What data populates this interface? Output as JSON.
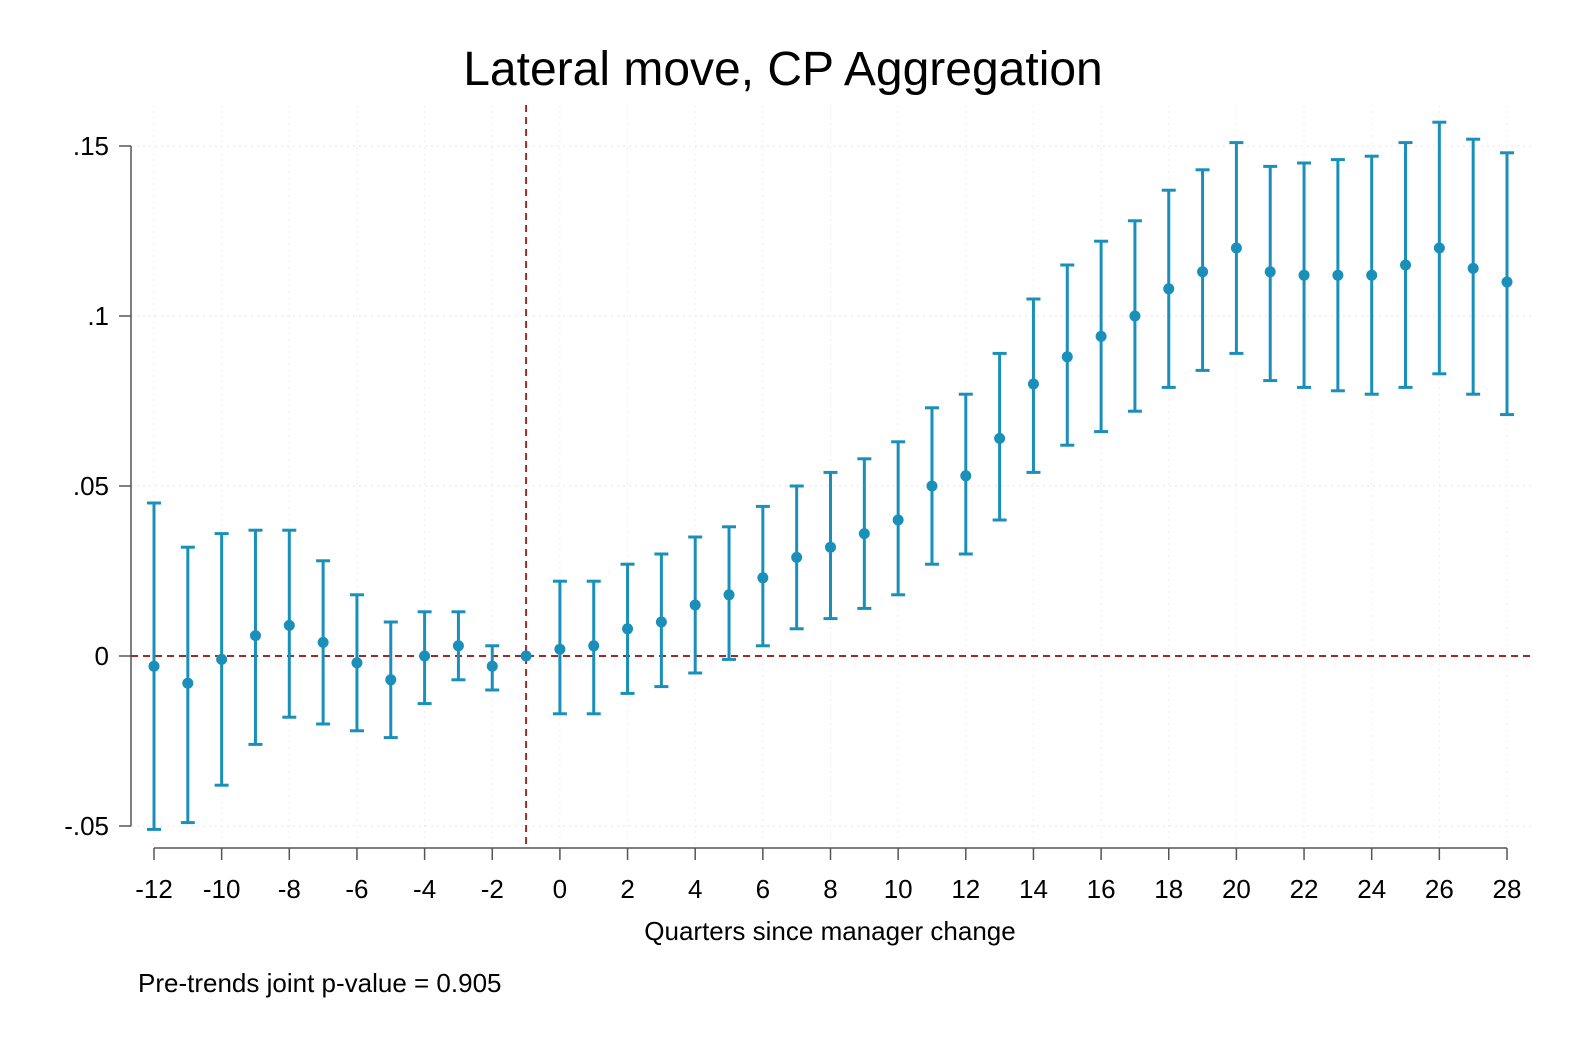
{
  "chart_data": {
    "type": "scatter",
    "title": "Lateral move, CP Aggregation",
    "xlabel": "Quarters since manager change",
    "ylabel": "",
    "note": "Pre-trends joint p-value = 0.905",
    "xlim": [
      -12,
      28
    ],
    "ylim": [
      -0.05,
      0.15
    ],
    "x_ticks": [
      -12,
      -10,
      -8,
      -6,
      -4,
      -2,
      0,
      2,
      4,
      6,
      8,
      10,
      12,
      14,
      16,
      18,
      20,
      22,
      24,
      26,
      28
    ],
    "x_tick_labels": [
      "-12",
      "-10",
      "-8",
      "-6",
      "-4",
      "-2",
      "0",
      "2",
      "4",
      "6",
      "8",
      "10",
      "12",
      "14",
      "16",
      "18",
      "20",
      "22",
      "24",
      "26",
      "28"
    ],
    "y_ticks": [
      -0.05,
      0,
      0.05,
      0.1,
      0.15
    ],
    "y_tick_labels": [
      "-.05",
      "0",
      ".05",
      ".1",
      ".15"
    ],
    "reference_lines": {
      "vertical_x": -1,
      "horizontal_y": 0
    },
    "grid": true,
    "colors": {
      "series": "#1a8fba",
      "reference": "#9b2c2c"
    },
    "points": [
      {
        "x": -12,
        "y": -0.003,
        "lo": -0.051,
        "hi": 0.045
      },
      {
        "x": -11,
        "y": -0.008,
        "lo": -0.049,
        "hi": 0.032
      },
      {
        "x": -10,
        "y": -0.001,
        "lo": -0.038,
        "hi": 0.036
      },
      {
        "x": -9,
        "y": 0.006,
        "lo": -0.026,
        "hi": 0.037
      },
      {
        "x": -8,
        "y": 0.009,
        "lo": -0.018,
        "hi": 0.037
      },
      {
        "x": -7,
        "y": 0.004,
        "lo": -0.02,
        "hi": 0.028
      },
      {
        "x": -6,
        "y": -0.002,
        "lo": -0.022,
        "hi": 0.018
      },
      {
        "x": -5,
        "y": -0.007,
        "lo": -0.024,
        "hi": 0.01
      },
      {
        "x": -4,
        "y": 0.0,
        "lo": -0.014,
        "hi": 0.013
      },
      {
        "x": -3,
        "y": 0.003,
        "lo": -0.007,
        "hi": 0.013
      },
      {
        "x": -2,
        "y": -0.003,
        "lo": -0.01,
        "hi": 0.003
      },
      {
        "x": -1,
        "y": 0.0,
        "lo": 0.0,
        "hi": 0.0
      },
      {
        "x": 0,
        "y": 0.002,
        "lo": -0.017,
        "hi": 0.022
      },
      {
        "x": 1,
        "y": 0.003,
        "lo": -0.017,
        "hi": 0.022
      },
      {
        "x": 2,
        "y": 0.008,
        "lo": -0.011,
        "hi": 0.027
      },
      {
        "x": 3,
        "y": 0.01,
        "lo": -0.009,
        "hi": 0.03
      },
      {
        "x": 4,
        "y": 0.015,
        "lo": -0.005,
        "hi": 0.035
      },
      {
        "x": 5,
        "y": 0.018,
        "lo": -0.001,
        "hi": 0.038
      },
      {
        "x": 6,
        "y": 0.023,
        "lo": 0.003,
        "hi": 0.044
      },
      {
        "x": 7,
        "y": 0.029,
        "lo": 0.008,
        "hi": 0.05
      },
      {
        "x": 8,
        "y": 0.032,
        "lo": 0.011,
        "hi": 0.054
      },
      {
        "x": 9,
        "y": 0.036,
        "lo": 0.014,
        "hi": 0.058
      },
      {
        "x": 10,
        "y": 0.04,
        "lo": 0.018,
        "hi": 0.063
      },
      {
        "x": 11,
        "y": 0.05,
        "lo": 0.027,
        "hi": 0.073
      },
      {
        "x": 12,
        "y": 0.053,
        "lo": 0.03,
        "hi": 0.077
      },
      {
        "x": 13,
        "y": 0.064,
        "lo": 0.04,
        "hi": 0.089
      },
      {
        "x": 14,
        "y": 0.08,
        "lo": 0.054,
        "hi": 0.105
      },
      {
        "x": 15,
        "y": 0.088,
        "lo": 0.062,
        "hi": 0.115
      },
      {
        "x": 16,
        "y": 0.094,
        "lo": 0.066,
        "hi": 0.122
      },
      {
        "x": 17,
        "y": 0.1,
        "lo": 0.072,
        "hi": 0.128
      },
      {
        "x": 18,
        "y": 0.108,
        "lo": 0.079,
        "hi": 0.137
      },
      {
        "x": 19,
        "y": 0.113,
        "lo": 0.084,
        "hi": 0.143
      },
      {
        "x": 20,
        "y": 0.12,
        "lo": 0.089,
        "hi": 0.151
      },
      {
        "x": 21,
        "y": 0.113,
        "lo": 0.081,
        "hi": 0.144
      },
      {
        "x": 22,
        "y": 0.112,
        "lo": 0.079,
        "hi": 0.145
      },
      {
        "x": 23,
        "y": 0.112,
        "lo": 0.078,
        "hi": 0.146
      },
      {
        "x": 24,
        "y": 0.112,
        "lo": 0.077,
        "hi": 0.147
      },
      {
        "x": 25,
        "y": 0.115,
        "lo": 0.079,
        "hi": 0.151
      },
      {
        "x": 26,
        "y": 0.12,
        "lo": 0.083,
        "hi": 0.157
      },
      {
        "x": 27,
        "y": 0.114,
        "lo": 0.077,
        "hi": 0.152
      },
      {
        "x": 28,
        "y": 0.11,
        "lo": 0.071,
        "hi": 0.148
      }
    ]
  }
}
